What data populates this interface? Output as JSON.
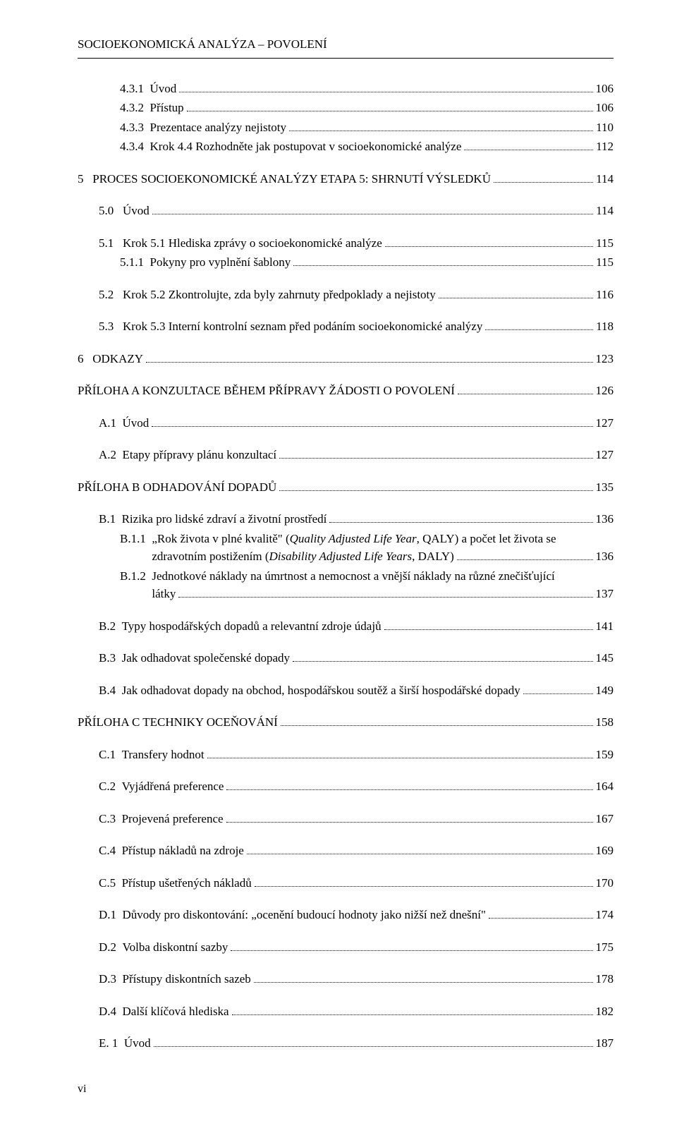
{
  "header": "SOCIOEKONOMICKÁ ANALÝZA – POVOLENÍ",
  "footer": "vi",
  "entries": [
    {
      "indent": "level-3",
      "label": "4.3.1  ",
      "title": "Úvod",
      "page": "106",
      "gap": ""
    },
    {
      "indent": "level-3",
      "label": "4.3.2  ",
      "title": "Přístup",
      "page": "106",
      "gap": ""
    },
    {
      "indent": "level-3",
      "label": "4.3.3  ",
      "title": "Prezentace analýzy nejistoty",
      "page": "110",
      "gap": ""
    },
    {
      "indent": "level-3",
      "label": "4.3.4  ",
      "title": "Krok 4.4 Rozhodněte jak postupovat v socioekonomické analýze",
      "page": "112",
      "gap": ""
    },
    {
      "indent": "level-1",
      "label": "5   ",
      "title": "PROCES SOCIOEKONOMICKÉ ANALÝZY ETAPA 5: SHRNUTÍ VÝSLEDKŮ",
      "page": "114",
      "gap": "group-gap"
    },
    {
      "indent": "level-2",
      "label": "5.0   ",
      "title": "Úvod",
      "page": "114",
      "gap": "group-gap"
    },
    {
      "indent": "level-2",
      "label": "5.1   ",
      "title": "Krok 5.1 Hlediska zprávy o socioekonomické analýze",
      "page": "115",
      "gap": "group-gap"
    },
    {
      "indent": "level-3",
      "label": "5.1.1  ",
      "title": "Pokyny pro vyplnění šablony",
      "page": "115",
      "gap": ""
    },
    {
      "indent": "level-2",
      "label": "5.2   ",
      "title": "Krok 5.2 Zkontrolujte, zda byly zahrnuty předpoklady a nejistoty",
      "page": "116",
      "gap": "group-gap"
    },
    {
      "indent": "level-2",
      "label": "5.3   ",
      "title": "Krok 5.3 Interní kontrolní seznam před podáním socioekonomické analýzy",
      "page": "118",
      "gap": "group-gap"
    },
    {
      "indent": "level-1",
      "label": "6   ",
      "title": "ODKAZY",
      "page": "123",
      "gap": "group-gap"
    },
    {
      "indent": "level-1",
      "label": "",
      "title": "PŘÍLOHA A KONZULTACE BĚHEM PŘÍPRAVY ŽÁDOSTI O POVOLENÍ",
      "page": "126",
      "gap": "group-gap"
    },
    {
      "indent": "level-2",
      "label": "A.1  ",
      "title": "Úvod",
      "page": "127",
      "gap": "group-gap"
    },
    {
      "indent": "level-2",
      "label": "A.2  ",
      "title": "Etapy přípravy plánu konzultací",
      "page": "127",
      "gap": "group-gap"
    },
    {
      "indent": "level-1",
      "label": "",
      "title": "PŘÍLOHA B ODHADOVÁNÍ DOPADŮ",
      "page": "135",
      "gap": "group-gap"
    },
    {
      "indent": "level-2",
      "label": "B.1  ",
      "title": "Rizika pro lidské zdraví a životní prostředí",
      "page": "136",
      "gap": "group-gap"
    },
    {
      "indent": "level-3",
      "label": "B.1.1  ",
      "title": "„Rok života v plné kvalitě\" (Quality Adjusted Life Year, QALY) a počet let života se zdravotním postižením (Disability Adjusted Life Years, DALY)",
      "page": "136",
      "gap": "",
      "italic_parts": true
    },
    {
      "indent": "level-3",
      "label": "B.1.2  ",
      "title": "Jednotkové náklady na úmrtnost a nemocnost a vnější náklady na různé znečišťující látky",
      "page": "137",
      "gap": ""
    },
    {
      "indent": "level-2",
      "label": "B.2  ",
      "title": "Typy hospodářských dopadů a relevantní zdroje údajů",
      "page": "141",
      "gap": "group-gap"
    },
    {
      "indent": "level-2",
      "label": "B.3  ",
      "title": "Jak odhadovat společenské dopady",
      "page": "145",
      "gap": "group-gap"
    },
    {
      "indent": "level-2",
      "label": "B.4  ",
      "title": "Jak odhadovat dopady na obchod, hospodářskou soutěž a širší hospodářské dopady",
      "page": "149",
      "gap": "group-gap"
    },
    {
      "indent": "level-1",
      "label": "",
      "title": "PŘÍLOHA C TECHNIKY OCEŇOVÁNÍ",
      "page": "158",
      "gap": "group-gap"
    },
    {
      "indent": "level-2",
      "label": "C.1  ",
      "title": "Transfery hodnot",
      "page": "159",
      "gap": "group-gap"
    },
    {
      "indent": "level-2",
      "label": "C.2  ",
      "title": "Vyjádřená preference",
      "page": "164",
      "gap": "group-gap"
    },
    {
      "indent": "level-2",
      "label": "C.3  ",
      "title": "Projevená preference",
      "page": "167",
      "gap": "group-gap"
    },
    {
      "indent": "level-2",
      "label": "C.4  ",
      "title": "Přístup nákladů na zdroje",
      "page": "169",
      "gap": "group-gap"
    },
    {
      "indent": "level-2",
      "label": "C.5  ",
      "title": "Přístup ušetřených nákladů",
      "page": "170",
      "gap": "group-gap"
    },
    {
      "indent": "level-2",
      "label": "D.1  ",
      "title": "Důvody pro diskontování: „ocenění budoucí hodnoty jako nižší než dnešní\"",
      "page": "174",
      "gap": "group-gap"
    },
    {
      "indent": "level-2",
      "label": "D.2  ",
      "title": "Volba diskontní sazby",
      "page": "175",
      "gap": "group-gap"
    },
    {
      "indent": "level-2",
      "label": "D.3  ",
      "title": "Přístupy diskontních sazeb",
      "page": "178",
      "gap": "group-gap"
    },
    {
      "indent": "level-2",
      "label": "D.4  ",
      "title": "Další klíčová hlediska",
      "page": "182",
      "gap": "group-gap"
    },
    {
      "indent": "level-2",
      "label": "E. 1  ",
      "title": "Úvod",
      "page": "187",
      "gap": "group-gap"
    }
  ]
}
